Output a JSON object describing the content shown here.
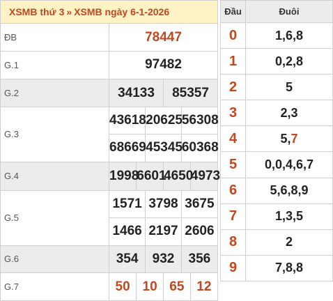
{
  "header": {
    "link1": "XSMB thứ 3",
    "separator": "»",
    "link2": "XSMB ngày 6-1-2026"
  },
  "prizes": {
    "db": {
      "label": "ĐB",
      "numbers": [
        "78447"
      ]
    },
    "g1": {
      "label": "G.1",
      "numbers": [
        "97482"
      ]
    },
    "g2": {
      "label": "G.2",
      "numbers": [
        "34133",
        "85357"
      ]
    },
    "g3": {
      "label": "G.3",
      "numbers": [
        "43618",
        "20625",
        "56308",
        "68669",
        "45345",
        "60368"
      ]
    },
    "g4": {
      "label": "G.4",
      "numbers": [
        "1998",
        "6601",
        "4650",
        "4973"
      ]
    },
    "g5": {
      "label": "G.5",
      "numbers": [
        "1571",
        "3798",
        "3675",
        "1466",
        "2197",
        "2606"
      ]
    },
    "g6": {
      "label": "G.6",
      "numbers": [
        "354",
        "932",
        "356"
      ]
    },
    "g7": {
      "label": "G.7",
      "numbers": [
        "50",
        "10",
        "65",
        "12"
      ]
    }
  },
  "loto": {
    "head_label": "Đầu",
    "tail_label": "Đuôi",
    "rows": [
      {
        "head": "0",
        "tail": "1,6,8"
      },
      {
        "head": "1",
        "tail": "0,2,8"
      },
      {
        "head": "2",
        "tail": "5"
      },
      {
        "head": "3",
        "tail": "2,3"
      },
      {
        "head": "4",
        "tail": "5,",
        "tail_highlight": "7"
      },
      {
        "head": "5",
        "tail": "0,0,4,6,7"
      },
      {
        "head": "6",
        "tail": "5,6,8,9"
      },
      {
        "head": "7",
        "tail": "1,3,5"
      },
      {
        "head": "8",
        "tail": "2"
      },
      {
        "head": "9",
        "tail": "7,8,8"
      }
    ]
  },
  "colors": {
    "accent": "#c0471f",
    "header_bg": "#fff3c6",
    "shade_bg": "#ececec",
    "border": "#cfcfcf"
  }
}
